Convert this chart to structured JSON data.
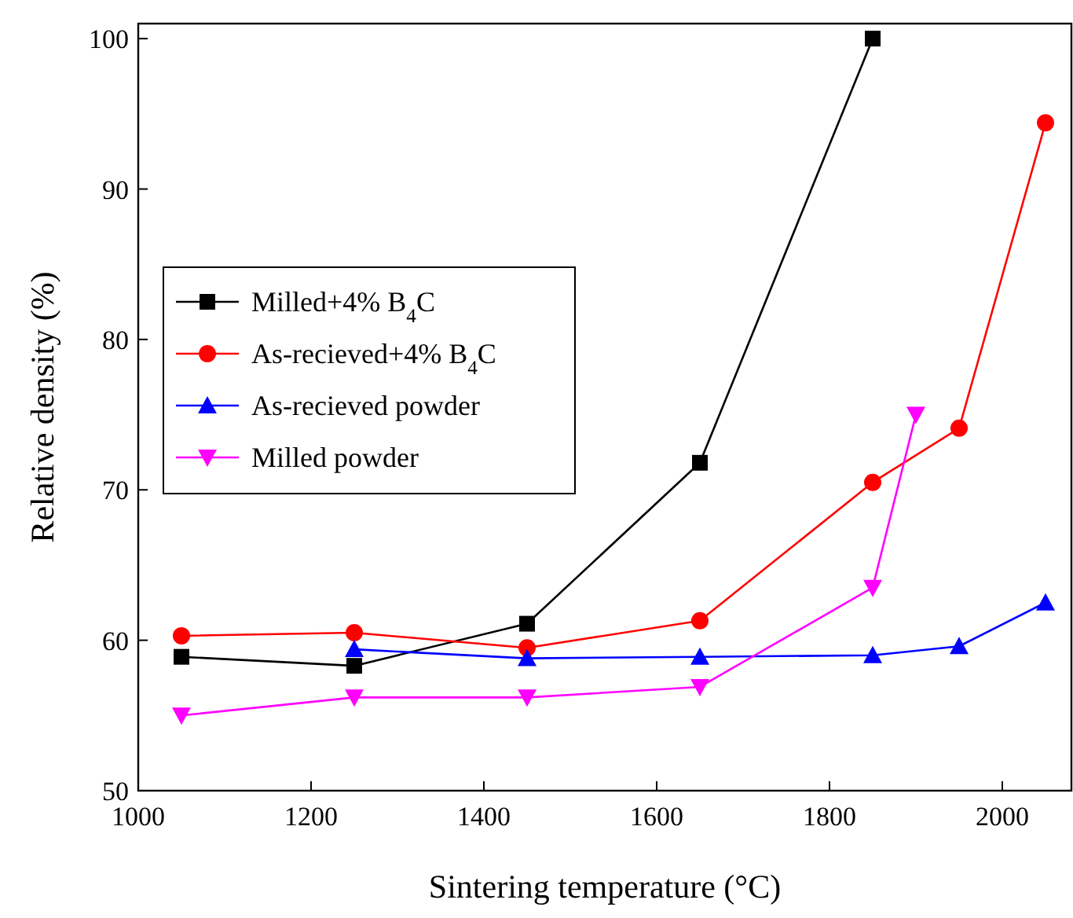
{
  "chart_data": {
    "type": "line",
    "xlabel": "Sintering temperature (°C)",
    "ylabel": "Relative density (%)",
    "xlim": [
      1000,
      2080
    ],
    "ylim": [
      50,
      101
    ],
    "xticks": [
      1000,
      1200,
      1400,
      1600,
      1800,
      2000
    ],
    "yticks": [
      50,
      60,
      70,
      80,
      90,
      100
    ],
    "grid": false,
    "legend": "left",
    "line_style": "solid",
    "series": [
      {
        "name": "Milled+4% B$_{4}$C",
        "color": "#000000",
        "marker": "square",
        "x": [
          1050,
          1250,
          1450,
          1650,
          1850
        ],
        "values": [
          58.9,
          58.3,
          61.1,
          71.8,
          100
        ]
      },
      {
        "name": "As-recieved+4% B$_{4}$C",
        "color": "#ff0000",
        "marker": "circle",
        "x": [
          1050,
          1250,
          1450,
          1650,
          1850,
          1950,
          2050
        ],
        "values": [
          60.3,
          60.5,
          59.5,
          61.3,
          70.5,
          74.1,
          94.4
        ]
      },
      {
        "name": "As-recieved powder",
        "color": "#0000ff",
        "marker": "triangle",
        "x": [
          1250,
          1450,
          1650,
          1850,
          1950,
          2050
        ],
        "values": [
          59.4,
          58.8,
          58.9,
          59.0,
          59.6,
          62.5
        ]
      },
      {
        "name": "Milled powder",
        "color": "#ff00ff",
        "marker": "triangle-down",
        "x": [
          1050,
          1250,
          1450,
          1650,
          1850,
          1900
        ],
        "values": [
          55.0,
          56.2,
          56.2,
          56.9,
          63.5,
          75.0
        ]
      }
    ]
  }
}
